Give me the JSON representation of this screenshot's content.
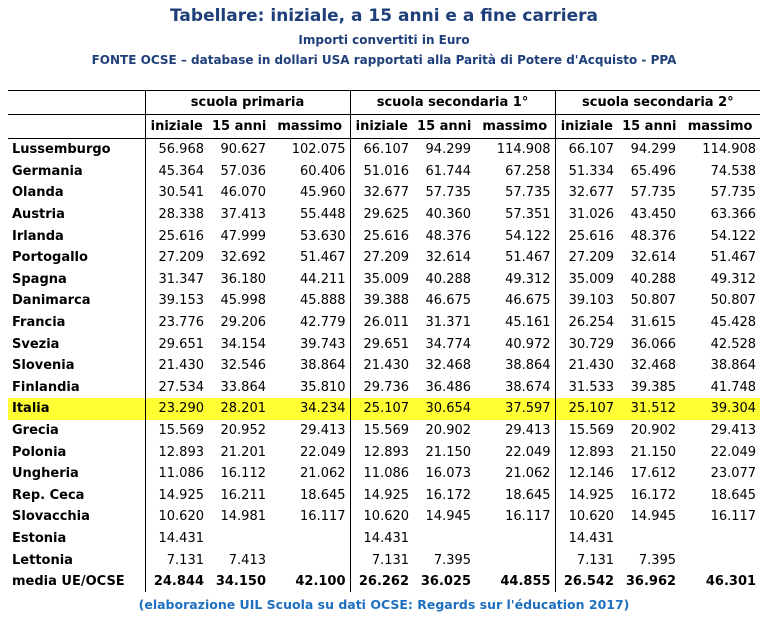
{
  "header": {
    "title": "Tabellare: iniziale, a 15 anni e a fine carriera",
    "subtitle": "Importi convertiti in Euro",
    "source": "FONTE OCSE – database in dollari USA rapportati alla Parità di Potere d'Acquisto - PPA"
  },
  "table": {
    "groups": [
      {
        "name": "scuola primaria",
        "columns": [
          "iniziale",
          "15 anni",
          "massimo"
        ]
      },
      {
        "name": "scuola secondaria 1°",
        "columns": [
          "iniziale",
          "15 anni",
          "massimo"
        ]
      },
      {
        "name": "scuola secondaria 2°",
        "columns": [
          "iniziale",
          "15 anni",
          "massimo"
        ]
      }
    ],
    "highlighted_row": 12,
    "highlight_color": "#ffff33",
    "bold_last_row": true,
    "rows": [
      [
        "Lussemburgo",
        "56.968",
        "90.627",
        "102.075",
        "66.107",
        "94.299",
        "114.908",
        "66.107",
        "94.299",
        "114.908"
      ],
      [
        "Germania",
        "45.364",
        "57.036",
        "60.406",
        "51.016",
        "61.744",
        "67.258",
        "51.334",
        "65.496",
        "74.538"
      ],
      [
        "Olanda",
        "30.541",
        "46.070",
        "45.960",
        "32.677",
        "57.735",
        "57.735",
        "32.677",
        "57.735",
        "57.735"
      ],
      [
        "Austria",
        "28.338",
        "37.413",
        "55.448",
        "29.625",
        "40.360",
        "57.351",
        "31.026",
        "43.450",
        "63.366"
      ],
      [
        "Irlanda",
        "25.616",
        "47.999",
        "53.630",
        "25.616",
        "48.376",
        "54.122",
        "25.616",
        "48.376",
        "54.122"
      ],
      [
        "Portogallo",
        "27.209",
        "32.692",
        "51.467",
        "27.209",
        "32.614",
        "51.467",
        "27.209",
        "32.614",
        "51.467"
      ],
      [
        "Spagna",
        "31.347",
        "36.180",
        "44.211",
        "35.009",
        "40.288",
        "49.312",
        "35.009",
        "40.288",
        "49.312"
      ],
      [
        "Danimarca",
        "39.153",
        "45.998",
        "45.888",
        "39.388",
        "46.675",
        "46.675",
        "39.103",
        "50.807",
        "50.807"
      ],
      [
        "Francia",
        "23.776",
        "29.206",
        "42.779",
        "26.011",
        "31.371",
        "45.161",
        "26.254",
        "31.615",
        "45.428"
      ],
      [
        "Svezia",
        "29.651",
        "34.154",
        "39.743",
        "29.651",
        "34.774",
        "40.972",
        "30.729",
        "36.066",
        "42.528"
      ],
      [
        "Slovenia",
        "21.430",
        "32.546",
        "38.864",
        "21.430",
        "32.468",
        "38.864",
        "21.430",
        "32.468",
        "38.864"
      ],
      [
        "Finlandia",
        "27.534",
        "33.864",
        "35.810",
        "29.736",
        "36.486",
        "38.674",
        "31.533",
        "39.385",
        "41.748"
      ],
      [
        "Italia",
        "23.290",
        "28.201",
        "34.234",
        "25.107",
        "30.654",
        "37.597",
        "25.107",
        "31.512",
        "39.304"
      ],
      [
        "Grecia",
        "15.569",
        "20.952",
        "29.413",
        "15.569",
        "20.902",
        "29.413",
        "15.569",
        "20.902",
        "29.413"
      ],
      [
        "Polonia",
        "12.893",
        "21.201",
        "22.049",
        "12.893",
        "21.150",
        "22.049",
        "12.893",
        "21.150",
        "22.049"
      ],
      [
        "Ungheria",
        "11.086",
        "16.112",
        "21.062",
        "11.086",
        "16.073",
        "21.062",
        "12.146",
        "17.612",
        "23.077"
      ],
      [
        "Rep. Ceca",
        "14.925",
        "16.211",
        "18.645",
        "14.925",
        "16.172",
        "18.645",
        "14.925",
        "16.172",
        "18.645"
      ],
      [
        "Slovacchia",
        "10.620",
        "14.981",
        "16.117",
        "10.620",
        "14.945",
        "16.117",
        "10.620",
        "14.945",
        "16.117"
      ],
      [
        "Estonia",
        "14.431",
        null,
        null,
        "14.431",
        null,
        null,
        "14.431",
        null,
        null
      ],
      [
        "Lettonia",
        "7.131",
        "7.413",
        null,
        "7.131",
        "7.395",
        null,
        "7.131",
        "7.395",
        null
      ],
      [
        "media UE/OCSE",
        "24.844",
        "34.150",
        "42.100",
        "26.262",
        "36.025",
        "44.855",
        "26.542",
        "36.962",
        "46.301"
      ]
    ]
  },
  "footer": {
    "note": "(elaborazione UIL Scuola su dati OCSE: Regards sur l'éducation 2017)"
  }
}
